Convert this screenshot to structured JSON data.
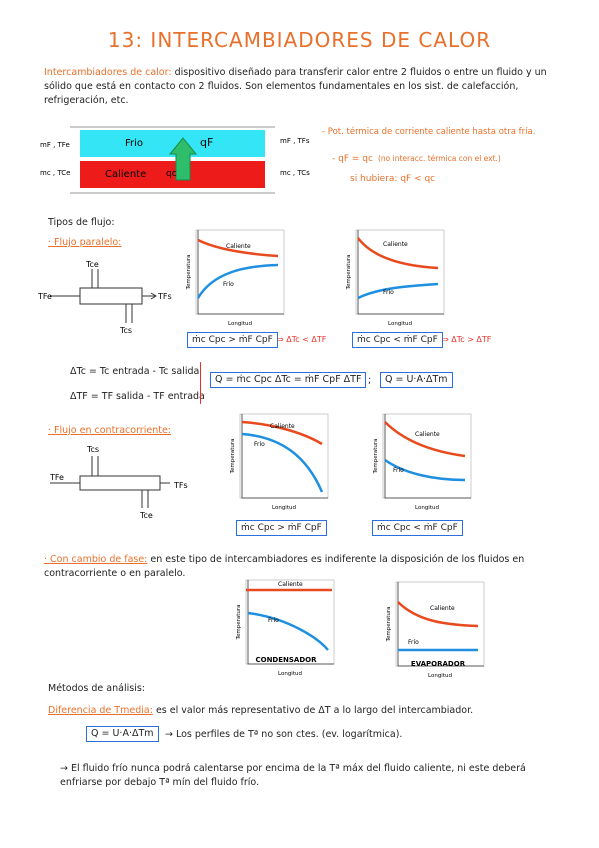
{
  "title": "13: INTERCAMBIADORES DE CALOR",
  "intro": {
    "term": "Intercambiadores de calor:",
    "text": "dispositivo diseñado para transferir calor entre 2 fluidos o entre un fluido y un sólido que está en contacto con 2 fluidos. Son elementos fundamentales en los sist. de calefacción, refrigeración, etc."
  },
  "exchanger": {
    "cold": "Frio",
    "hot": "Caliente",
    "cold_in": "mF , TFe",
    "cold_out": "mF , TFs",
    "hot_in": "mc , TCe",
    "hot_out": "mc , TCs",
    "q_cold": "qF",
    "q_hot": "qc"
  },
  "notes": [
    "- Pot. térmica de corriente caliente hasta otra fría.",
    "- qF = qc",
    "(no interacc. térmica con el ext.)",
    "si hubiera: qF < qc"
  ],
  "flow_types": {
    "heading": "Tipos de flujo:",
    "parallel": {
      "label": "· Flujo paralelo:",
      "pipe": [
        "Tce",
        "TFe",
        "TFs",
        "Tcs"
      ]
    },
    "counter": {
      "label": "· Flujo en contracorriente:",
      "pipe": [
        "Tcs",
        "TFe",
        "TFs",
        "Tce"
      ]
    },
    "phase_change": {
      "label": "· Con cambio de fase:",
      "text": "en este tipo de intercambiadores es indiferente la disposición de los fluidos en contracorriente o en paralelo."
    }
  },
  "definitions": {
    "dTc": "ΔTc = Tc entrada - Tc salida",
    "dTF": "ΔTF = TF salida - TF entrada",
    "balance": "Q = ṁc Cpc ΔTc = ṁF CpF ΔTF",
    "sep": ";",
    "rate": "Q = U·A·ΔTm"
  },
  "charts": [
    {
      "y_label": "Temperatura",
      "x_label": "Longitud",
      "hot": "Caliente",
      "cold": "Frío",
      "condition": "ṁc Cpc > ṁF CpF",
      "result": "⇒ ΔTc < ΔTF"
    },
    {
      "y_label": "Temperatura",
      "x_label": "Longitud",
      "hot": "Caliente",
      "cold": "Frío",
      "condition": "ṁc Cpc < ṁF CpF",
      "result": "⇒ ΔTc > ΔTF"
    },
    {
      "y_label": "Temperatura",
      "x_label": "Longitud",
      "hot": "Caliente",
      "cold": "Frío",
      "condition": "ṁc Cpc > ṁF CpF"
    },
    {
      "y_label": "Temperatura",
      "x_label": "Longitud",
      "hot": "Caliente",
      "cold": "Frío",
      "condition": "ṁc Cpc < ṁF CpF"
    },
    {
      "y_label": "Temperatura",
      "x_label": "Longitud",
      "hot": "Caliente",
      "cold": "Frío",
      "name": "CONDENSADOR"
    },
    {
      "y_label": "Temperatura",
      "x_label": "Longitud",
      "hot": "Caliente",
      "cold": "Frío",
      "name": "EVAPORADOR"
    }
  ],
  "methods": {
    "heading": "Métodos de análisis:",
    "term": "Diferencia de Tmedia:",
    "text": "es el valor más representativo de ΔT a lo largo del intercambiador.",
    "formula": "Q = U·A·ΔTm",
    "note1": "→ Los perfiles de Tª no son ctes. (ev. logarítmica).",
    "note2": "→ El fluido frío nunca podrá calentarse por encima de la Tª máx del fluido caliente, ni este deberá enfriarse por debajo Tª mín del fluido frío."
  }
}
